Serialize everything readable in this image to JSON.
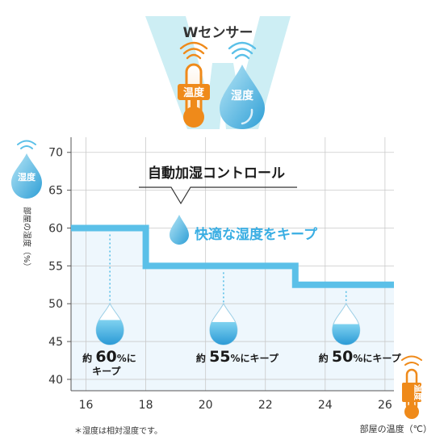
{
  "header": {
    "title": "Wセンサー",
    "temp_badge": "温度",
    "humid_badge": "湿度",
    "accent_blue": "#5bc0e8",
    "accent_orange": "#ef8a1a",
    "w_shape_color": "#cdeef4"
  },
  "y_side": {
    "badge": "湿度",
    "label": "部屋の湿度（%）"
  },
  "x_side": {
    "badge": "温度",
    "label": "部屋の温度（℃）"
  },
  "callout": {
    "title": "自動加湿コントロール",
    "subtitle": "快適な湿度をキープ"
  },
  "footnote": "＊湿度は相対湿度です。",
  "chart_data": {
    "type": "line",
    "xlim": [
      15.5,
      26.3
    ],
    "ylim": [
      38.5,
      72
    ],
    "x_ticks": [
      16,
      18,
      20,
      22,
      24,
      26
    ],
    "y_ticks": [
      40,
      45,
      50,
      55,
      60,
      65,
      70
    ],
    "series": [
      {
        "x": [
          15.5,
          18,
          18,
          23,
          23,
          26.3
        ],
        "y": [
          60,
          60,
          55,
          55,
          52.5,
          52.5
        ]
      }
    ],
    "annotations": [
      {
        "x": 16.8,
        "prefix": "約",
        "value": "60",
        "suffix": "%に",
        "line2": "キープ",
        "fill": 0.6
      },
      {
        "x": 20.6,
        "prefix": "約",
        "value": "55",
        "suffix": "%にキープ",
        "line2": "",
        "fill": 0.55
      },
      {
        "x": 24.7,
        "prefix": "約",
        "value": "50",
        "suffix": "%にキープ",
        "line2": "",
        "fill": 0.5
      }
    ],
    "grid": true
  }
}
